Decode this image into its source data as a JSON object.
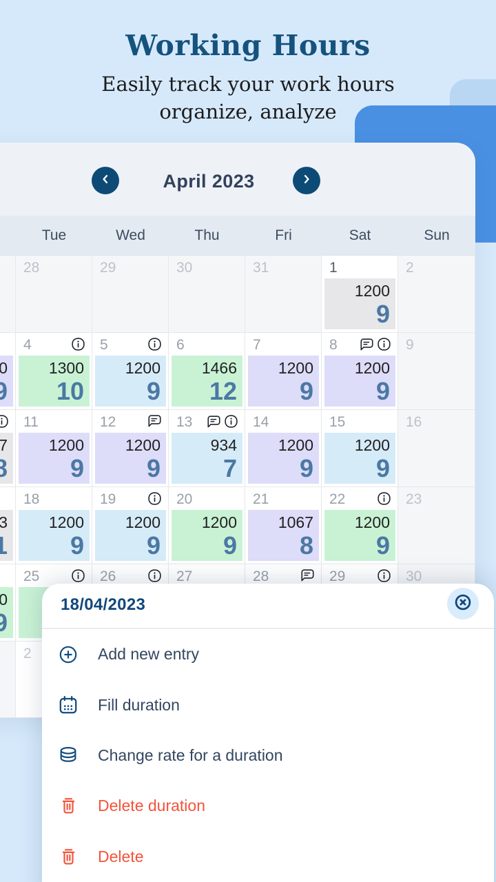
{
  "page": {
    "title": "Working Hours",
    "subtitle_line1": "Easily track your work hours",
    "subtitle_line2": "organize, analyze"
  },
  "calendar": {
    "month_title": "April 2023",
    "day_headers": [
      "",
      "Tue",
      "Wed",
      "Thu",
      "Fri",
      "Sat",
      "Sun"
    ],
    "weeks": [
      [
        {
          "date": "",
          "off": true
        },
        {
          "date": "28",
          "off": true
        },
        {
          "date": "29",
          "off": true
        },
        {
          "date": "30",
          "off": true
        },
        {
          "date": "31",
          "off": true
        },
        {
          "date": "1",
          "emphasis": true,
          "badge": {
            "color": "gray",
            "rate": "1200",
            "hours": "9"
          }
        },
        {
          "date": "2",
          "off": true
        }
      ],
      [
        {
          "date": "",
          "badge": {
            "color": "lavender",
            "rate": "0",
            "hours": "9"
          }
        },
        {
          "date": "4",
          "icons": [
            "info-icon"
          ],
          "badge": {
            "color": "green",
            "rate": "1300",
            "hours": "10"
          }
        },
        {
          "date": "5",
          "icons": [
            "info-icon"
          ],
          "badge": {
            "color": "blue",
            "rate": "1200",
            "hours": "9"
          }
        },
        {
          "date": "6",
          "badge": {
            "color": "green",
            "rate": "1466",
            "hours": "12"
          }
        },
        {
          "date": "7",
          "badge": {
            "color": "lavender",
            "rate": "1200",
            "hours": "9"
          }
        },
        {
          "date": "8",
          "icons": [
            "comment-icon",
            "info-icon"
          ],
          "badge": {
            "color": "lavender",
            "rate": "1200",
            "hours": "9"
          }
        },
        {
          "date": "9",
          "off": true
        }
      ],
      [
        {
          "date": "",
          "icons": [
            "info-icon"
          ],
          "badge": {
            "color": "gray",
            "rate": "7",
            "hours": "8"
          }
        },
        {
          "date": "11",
          "badge": {
            "color": "lavender",
            "rate": "1200",
            "hours": "9"
          }
        },
        {
          "date": "12",
          "icons": [
            "comment-icon"
          ],
          "badge": {
            "color": "lavender",
            "rate": "1200",
            "hours": "9"
          }
        },
        {
          "date": "13",
          "icons": [
            "comment-icon",
            "info-icon"
          ],
          "badge": {
            "color": "blue",
            "rate": "934",
            "hours": "7"
          }
        },
        {
          "date": "14",
          "badge": {
            "color": "lavender",
            "rate": "1200",
            "hours": "9"
          }
        },
        {
          "date": "15",
          "badge": {
            "color": "blue",
            "rate": "1200",
            "hours": "9"
          }
        },
        {
          "date": "16",
          "off": true
        }
      ],
      [
        {
          "date": "",
          "badge": {
            "color": "gray",
            "rate": "3",
            "hours": "1"
          }
        },
        {
          "date": "18",
          "badge": {
            "color": "blue",
            "rate": "1200",
            "hours": "9"
          }
        },
        {
          "date": "19",
          "icons": [
            "info-icon"
          ],
          "badge": {
            "color": "blue",
            "rate": "1200",
            "hours": "9"
          }
        },
        {
          "date": "20",
          "badge": {
            "color": "green",
            "rate": "1200",
            "hours": "9"
          }
        },
        {
          "date": "21",
          "badge": {
            "color": "lavender",
            "rate": "1067",
            "hours": "8"
          }
        },
        {
          "date": "22",
          "icons": [
            "info-icon"
          ],
          "badge": {
            "color": "green",
            "rate": "1200",
            "hours": "9"
          }
        },
        {
          "date": "23",
          "off": true
        }
      ],
      [
        {
          "date": "",
          "badge": {
            "color": "green",
            "rate": "0",
            "hours": "9"
          }
        },
        {
          "date": "25",
          "icons": [
            "info-icon"
          ],
          "badge": {
            "color": "green",
            "rate": "",
            "hours": ""
          }
        },
        {
          "date": "26",
          "icons": [
            "info-icon"
          ]
        },
        {
          "date": "27"
        },
        {
          "date": "28",
          "icons": [
            "comment-icon"
          ]
        },
        {
          "date": "29",
          "icons": [
            "info-icon"
          ]
        },
        {
          "date": "30",
          "off": true
        }
      ],
      [
        {
          "date": "",
          "off": true
        },
        {
          "date": "2",
          "faint": true
        },
        {
          "date": ""
        },
        {
          "date": ""
        },
        {
          "date": ""
        },
        {
          "date": ""
        },
        {
          "date": ""
        }
      ]
    ]
  },
  "action_sheet": {
    "title": "18/04/2023",
    "close_icon": "close-circle-icon",
    "items": [
      {
        "label": "Add new entry",
        "icon": "plus-circle-icon",
        "danger": false
      },
      {
        "label": "Fill duration",
        "icon": "calendar-icon",
        "danger": false
      },
      {
        "label": "Change rate for a duration",
        "icon": "coins-icon",
        "danger": false
      },
      {
        "label": "Delete duration",
        "icon": "trash-icon",
        "danger": true
      },
      {
        "label": "Delete",
        "icon": "trash-icon",
        "danger": true
      }
    ]
  },
  "colors": {
    "accent_blue": "#4a90e2",
    "navy": "#0e4a76",
    "title_blue": "#15537d",
    "badge_green": "#c9f2d5",
    "badge_blue": "#d5ebf8",
    "badge_lavender": "#dddcf9",
    "badge_gray": "#e7e7ea",
    "hours_text": "#4b78a3",
    "danger": "#f4533a"
  }
}
